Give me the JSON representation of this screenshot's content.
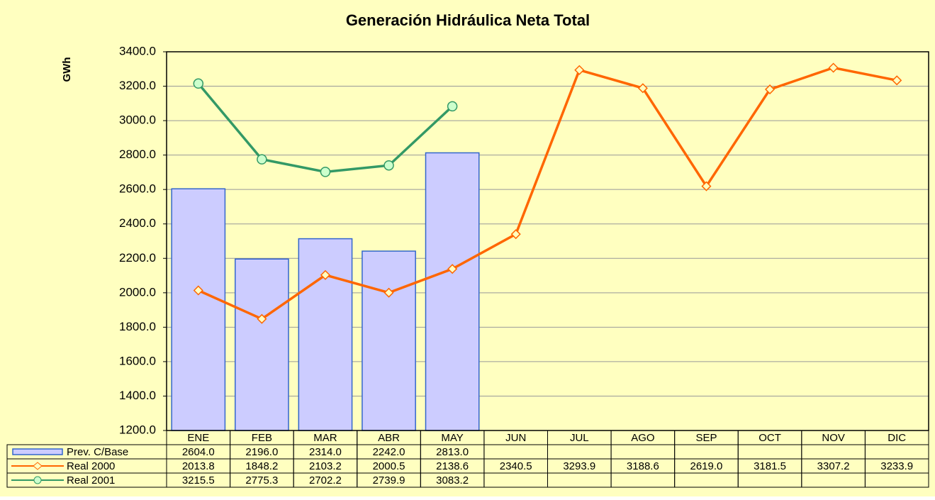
{
  "chart_data": {
    "type": "bar_line_table",
    "title": "Generación Hidráulica Neta Total",
    "y_label": "GWh",
    "categories": [
      "ENE",
      "FEB",
      "MAR",
      "ABR",
      "MAY",
      "JUN",
      "JUL",
      "AGO",
      "SEP",
      "OCT",
      "NOV",
      "DIC"
    ],
    "series": [
      {
        "name": "Prev. C/Base",
        "kind": "bar",
        "color": "#ccccff",
        "stroke": "#3366cc",
        "values": [
          2604,
          2196,
          2314,
          2242,
          2813,
          null,
          null,
          null,
          null,
          null,
          null,
          null
        ],
        "value_labels": [
          "2604.0",
          "2196.0",
          "2314.0",
          "2242.0",
          "2813.0",
          null,
          null,
          null,
          null,
          null,
          null,
          null
        ]
      },
      {
        "name": "Real 2000",
        "kind": "line",
        "marker": "diamond",
        "color": "#ff6600",
        "marker_fill": "#ffffc0",
        "values": [
          2013.8,
          1848.2,
          2103.2,
          2000.5,
          2138.6,
          2340.5,
          3293.9,
          3188.6,
          2619.0,
          3181.5,
          3307.2,
          3233.9
        ],
        "value_labels": [
          "2013.8",
          "1848.2",
          "2103.2",
          "2000.5",
          "2138.6",
          "2340.5",
          "3293.9",
          "3188.6",
          "2619.0",
          "3181.5",
          "3307.2",
          "3233.9"
        ]
      },
      {
        "name": "Real 2001",
        "kind": "line",
        "marker": "circle",
        "color": "#339966",
        "marker_fill": "#ccffcc",
        "values": [
          3215.5,
          2775.3,
          2702.2,
          2739.9,
          3083.2,
          null,
          null,
          null,
          null,
          null,
          null,
          null
        ],
        "value_labels": [
          "3215.5",
          "2775.3",
          "2702.2",
          "2739.9",
          "3083.2",
          null,
          null,
          null,
          null,
          null,
          null,
          null
        ]
      }
    ],
    "ylim": [
      1200,
      3400
    ],
    "yticks": [
      {
        "value": 1200,
        "label": "1200.0"
      },
      {
        "value": 1400,
        "label": "1400.0"
      },
      {
        "value": 1600,
        "label": "1600.0"
      },
      {
        "value": 1800,
        "label": "1800.0"
      },
      {
        "value": 2000,
        "label": "2000.0"
      },
      {
        "value": 2200,
        "label": "2200.0"
      },
      {
        "value": 2400,
        "label": "2400.0"
      },
      {
        "value": 2600,
        "label": "2600.0"
      },
      {
        "value": 2800,
        "label": "2800.0"
      },
      {
        "value": 3000,
        "label": "3000.0"
      },
      {
        "value": 3200,
        "label": "3200.0"
      },
      {
        "value": 3400,
        "label": "3400.0"
      }
    ],
    "grid": true,
    "background": "#ffffc0"
  }
}
